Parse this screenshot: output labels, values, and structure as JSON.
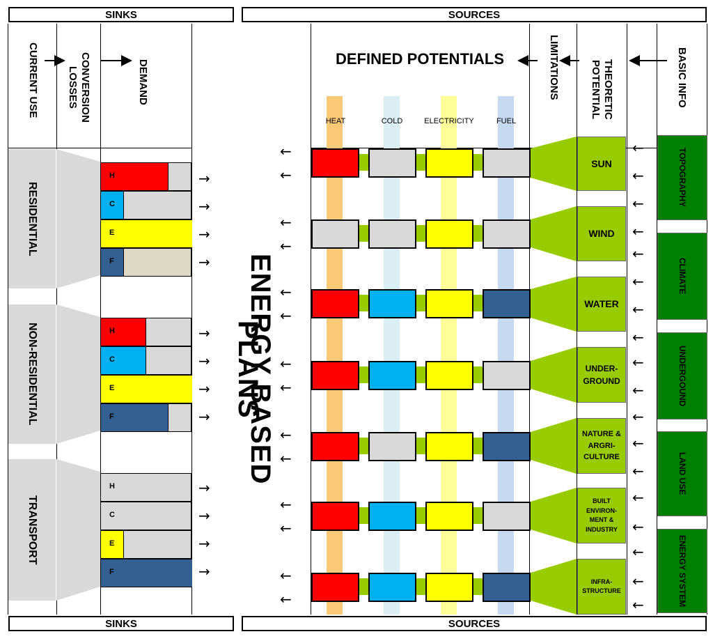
{
  "banners": {
    "sinks_top": "SINKS",
    "sources_top": "SOURCES",
    "sinks_bottom": "SINKS",
    "sources_bottom": "SOURCES"
  },
  "headers": {
    "current_use": "CURRENT USE",
    "conversion_losses": "CONVERSION LOSSES",
    "demand": "DEMAND",
    "defined_potentials": "DEFINED POTENTIALS",
    "limitations": "LIMITATIONS",
    "theoretic_potential": "THEORETIC POTENTIAL",
    "basic_info": "BASIC INFO"
  },
  "center_title": "ENERGY BASED PLANS",
  "columns": {
    "heat": "HEAT",
    "cold": "COLD",
    "electricity": "ELECTRICITY",
    "fuel": "FUEL"
  },
  "sectors": [
    "RESIDENTIAL",
    "NON-RESIDENTIAL",
    "TRANSPORT"
  ],
  "demand_letters": [
    "H",
    "C",
    "E",
    "F"
  ],
  "potentials": [
    "SUN",
    "WIND",
    "WATER",
    "UNDER-GROUND",
    "NATURE & ARGRI-CULTURE",
    "BUILT ENVIRON-MENT & INDUSTRY",
    "INFRA-STRUCTURE"
  ],
  "basic_info": [
    "TOPOGRAPHY",
    "CLIMATE",
    "UNDERGOUND",
    "LAND USE",
    "ENERGY SYSTEM"
  ],
  "colors": {
    "heat": "#ff0000",
    "cold": "#00b0f0",
    "electricity": "#ffff00",
    "fuel": "#335f91",
    "inactive": "#d9d9d9",
    "fuel_light": "#ddd9c4",
    "green": "#99cc00",
    "dark_green": "#008000"
  }
}
